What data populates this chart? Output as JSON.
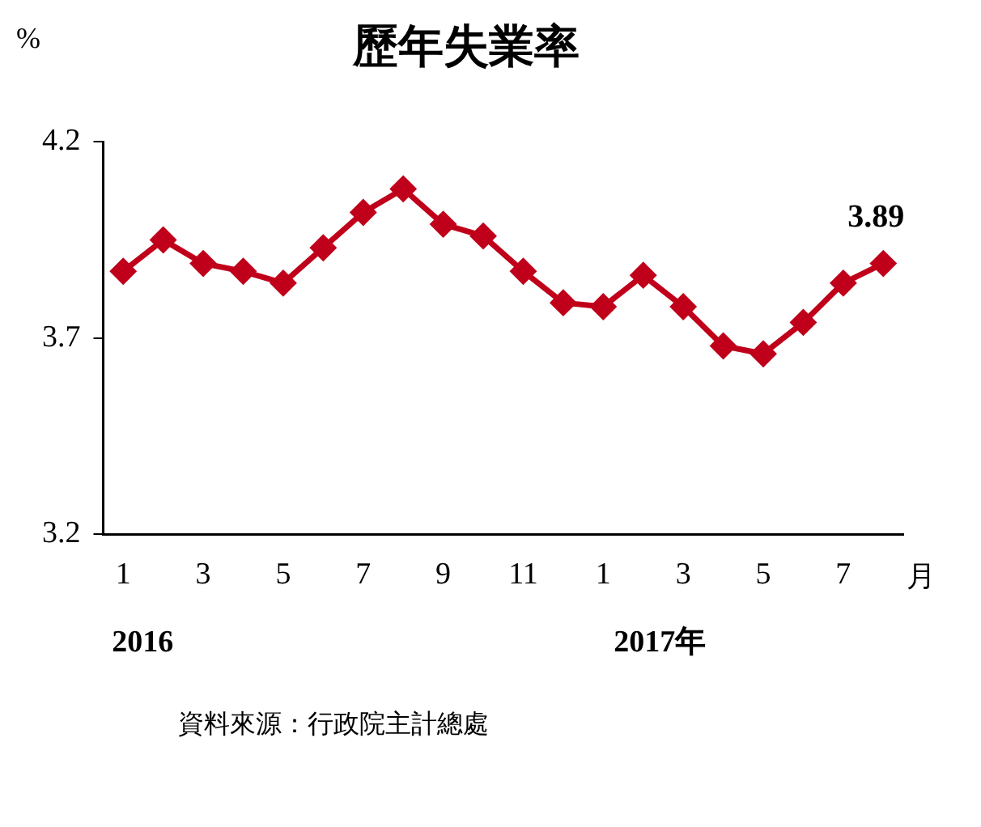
{
  "chart_data": {
    "type": "line",
    "title": "歷年失業率",
    "ylabel": "%",
    "xlabel": "月",
    "categories": [
      "1",
      null,
      "3",
      null,
      "5",
      null,
      "7",
      null,
      "9",
      null,
      "11",
      null,
      "1",
      null,
      "3",
      null,
      "5",
      null,
      "7",
      null
    ],
    "series": [
      {
        "color": "#c0001a",
        "values": [
          3.87,
          3.95,
          3.89,
          3.87,
          3.84,
          3.93,
          4.02,
          4.08,
          3.99,
          3.96,
          3.87,
          3.79,
          3.78,
          3.86,
          3.78,
          3.68,
          3.66,
          3.74,
          3.84,
          3.89
        ],
        "value_labels": [
          null,
          null,
          null,
          null,
          null,
          null,
          null,
          null,
          null,
          null,
          null,
          null,
          null,
          null,
          null,
          null,
          null,
          null,
          null,
          "3.89"
        ]
      }
    ],
    "ylim": [
      3.2,
      4.2
    ],
    "yticks": [
      3.2,
      3.7,
      4.2
    ],
    "grid": false,
    "legend": false,
    "marker": "diamond",
    "line_style": "solid",
    "annotations": [
      "2016",
      "2017年",
      "資料來源：行政院主計總處"
    ]
  }
}
